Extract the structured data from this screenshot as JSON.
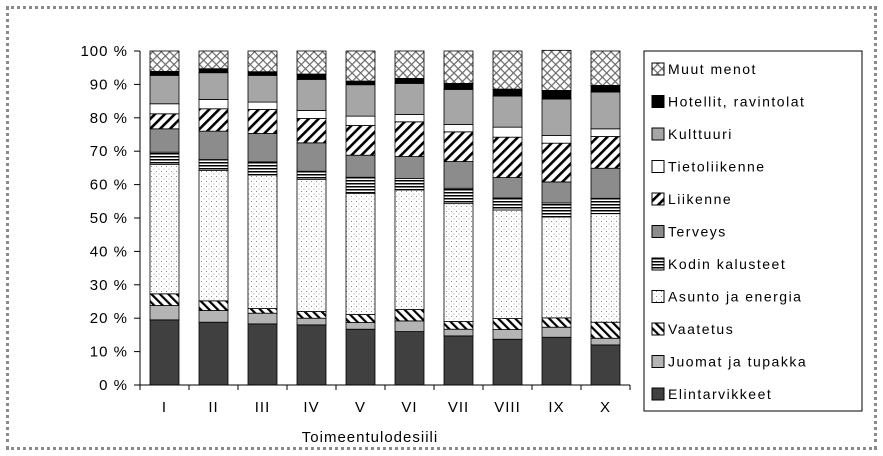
{
  "chart_data": {
    "type": "bar",
    "stacked": true,
    "percent_stacked": true,
    "title": "",
    "xlabel": "Toimeentulodesiili",
    "ylabel": "",
    "ylim": [
      0,
      100
    ],
    "yticks": [
      "0 %",
      "10 %",
      "20 %",
      "30 %",
      "40 %",
      "50 %",
      "60 %",
      "70 %",
      "80 %",
      "90 %",
      "100 %"
    ],
    "categories": [
      "I",
      "II",
      "III",
      "IV",
      "V",
      "VI",
      "VII",
      "VIII",
      "IX",
      "X"
    ],
    "legend_position": "right",
    "series": [
      {
        "name": "Elintarvikkeet",
        "fill": "solid-dark",
        "color": "#404040",
        "values": [
          19.5,
          18.8,
          18.3,
          18.0,
          16.7,
          16.0,
          14.7,
          13.7,
          14.3,
          12.0
        ]
      },
      {
        "name": "Juomat ja tupakka",
        "fill": "solid-light",
        "color": "#b4b4b4",
        "values": [
          4.3,
          3.5,
          3.2,
          2.0,
          2.0,
          3.2,
          2.0,
          2.9,
          3.0,
          2.0
        ]
      },
      {
        "name": "Vaatetus",
        "fill": "hatch-back",
        "color": "#000000",
        "values": [
          3.5,
          2.9,
          1.4,
          2.0,
          2.4,
          3.4,
          2.3,
          3.3,
          2.8,
          4.8
        ]
      },
      {
        "name": "Asunto ja energia",
        "fill": "dots",
        "color": "#9a9a9a",
        "values": [
          38.7,
          39.0,
          40.0,
          39.5,
          36.3,
          35.8,
          35.3,
          32.5,
          30.2,
          32.5
        ]
      },
      {
        "name": "Kodin kalusteet",
        "fill": "hlines",
        "color": "#000000",
        "values": [
          3.7,
          3.3,
          3.9,
          2.5,
          4.8,
          3.4,
          4.6,
          3.6,
          4.2,
          4.6
        ]
      },
      {
        "name": "Terveys",
        "fill": "solid-mid",
        "color": "#8c8c8c",
        "values": [
          7.0,
          8.5,
          8.5,
          8.5,
          6.6,
          6.6,
          8.0,
          6.1,
          6.3,
          9.0
        ]
      },
      {
        "name": "Liikenne",
        "fill": "hatch-fwd",
        "color": "#000000",
        "values": [
          4.5,
          6.7,
          7.2,
          7.3,
          8.9,
          10.4,
          8.9,
          12.1,
          11.6,
          9.5
        ]
      },
      {
        "name": "Tietoliikenne",
        "fill": "white",
        "color": "#ffffff",
        "values": [
          3.0,
          2.8,
          2.2,
          2.4,
          2.8,
          2.2,
          2.2,
          3.0,
          2.3,
          2.3
        ]
      },
      {
        "name": "Kulttuuri",
        "fill": "solid-gray",
        "color": "#a6a6a6",
        "values": [
          8.5,
          8.0,
          8.0,
          9.3,
          9.4,
          9.3,
          10.5,
          9.3,
          10.9,
          11.0
        ]
      },
      {
        "name": "Hotellit, ravintolat",
        "fill": "solid-black",
        "color": "#000000",
        "values": [
          1.2,
          1.2,
          1.1,
          1.6,
          1.1,
          1.5,
          1.8,
          2.1,
          2.6,
          2.0
        ]
      },
      {
        "name": "Muut menot",
        "fill": "crosshatch",
        "color": "#777777",
        "values": [
          6.1,
          5.3,
          6.2,
          6.9,
          9.0,
          8.2,
          9.7,
          11.4,
          12.0,
          10.3
        ]
      }
    ]
  }
}
